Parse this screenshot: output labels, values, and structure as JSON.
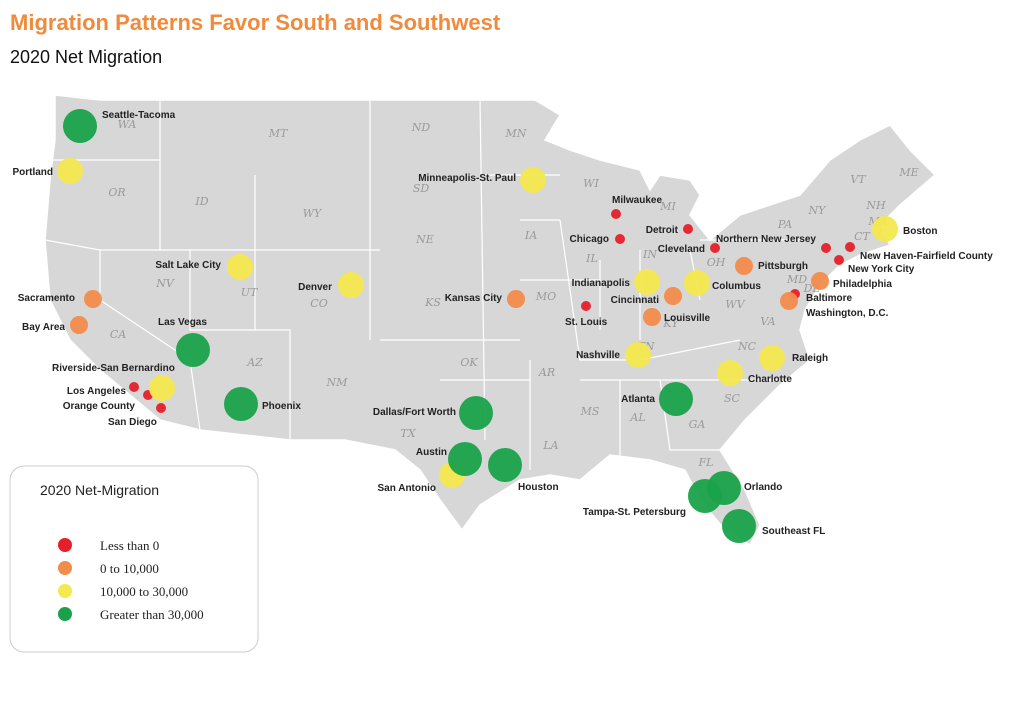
{
  "title": "Migration Patterns Favor South and Southwest",
  "subtitle": "2020 Net Migration",
  "states": [
    "WA",
    "MT",
    "ND",
    "MN",
    "OR",
    "ID",
    "WY",
    "SD",
    "WI",
    "MI",
    "NV",
    "UT",
    "CO",
    "NE",
    "IA",
    "IL",
    "IN",
    "OH",
    "PA",
    "NY",
    "VT",
    "NH",
    "ME",
    "MA",
    "CT",
    "MD",
    "DE",
    "CA",
    "AZ",
    "NM",
    "KS",
    "MO",
    "KY",
    "WV",
    "VA",
    "TN",
    "NC",
    "SC",
    "OK",
    "AR",
    "MS",
    "AL",
    "GA",
    "TX",
    "LA",
    "FL"
  ],
  "legend": {
    "title": "2020 Net-Migration",
    "groups": [
      {
        "label": "Less than 0",
        "color": "#e5202a",
        "cities": [
          "Milwaukee",
          "Detroit",
          "Chicago",
          "Cleveland",
          "St. Louis",
          "Los Angeles",
          "Orange County",
          "San Diego",
          "Northern New Jersey",
          "New Haven-Fairfield County",
          "New York City",
          "Baltimore"
        ]
      },
      {
        "label": "0 to 10,000",
        "color": "#f28c4b",
        "cities": [
          "Sacramento",
          "Bay Area",
          "Kansas City",
          "Cincinnati",
          "Louisville",
          "Pittsburgh",
          "Philadelphia",
          "Washington, D.C."
        ]
      },
      {
        "label": "10,000 to 30,000",
        "color": "#f4e84f",
        "cities": [
          "Portland",
          "Salt Lake City",
          "Denver",
          "Minneapolis-St. Paul",
          "Indianapolis",
          "Columbus",
          "Nashville",
          "Charlotte",
          "Raleigh",
          "Boston",
          "Riverside-San Bernardino",
          "San Antonio"
        ]
      },
      {
        "label": "Greater than 30,000",
        "color": "#1aa24b",
        "cities": [
          "Seattle-Tacoma",
          "Las Vegas",
          "Phoenix",
          "Dallas/Fort Worth",
          "Austin",
          "Houston",
          "Atlanta",
          "Orlando",
          "Tampa-St. Petersburg",
          "Southeast FL"
        ]
      }
    ]
  }
}
